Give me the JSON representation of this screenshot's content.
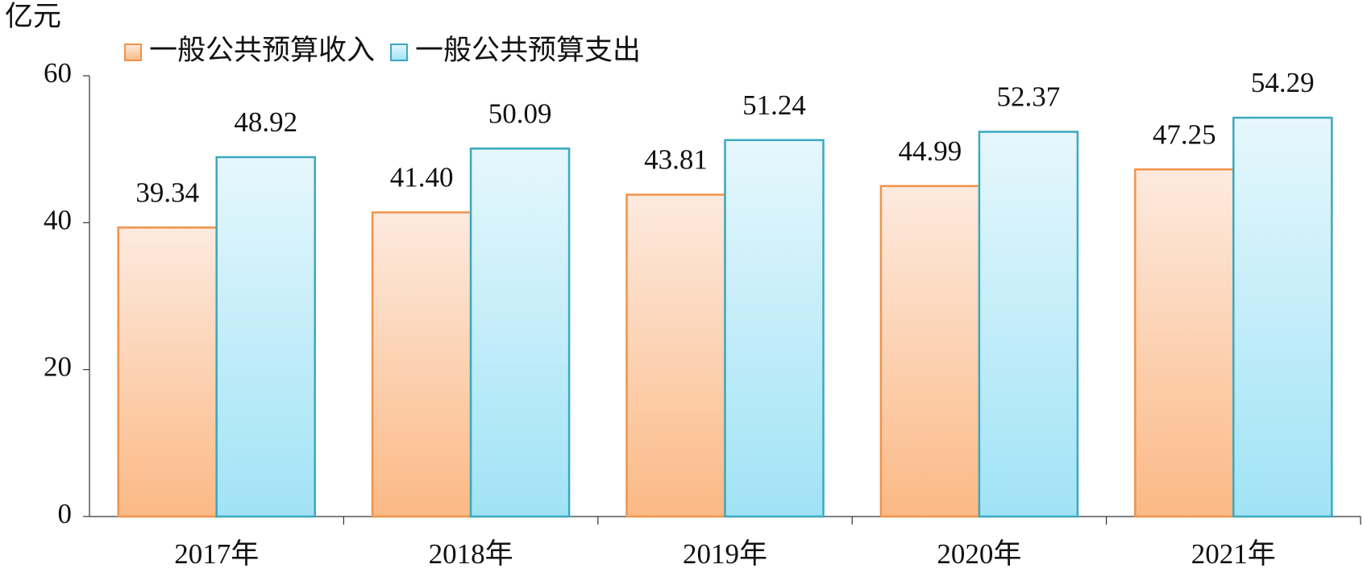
{
  "chart_data": {
    "type": "bar",
    "y_label": "亿元",
    "categories": [
      "2017年",
      "2018年",
      "2019年",
      "2020年",
      "2021年"
    ],
    "series": [
      {
        "name": "一般公共预算收入",
        "color": "#f0934a",
        "values": [
          39.34,
          41.4,
          43.81,
          44.99,
          47.25
        ],
        "value_labels": [
          "39.34",
          "41.40",
          "43.81",
          "44.99",
          "47.25"
        ]
      },
      {
        "name": "一般公共预算支出",
        "color": "#3aa9c0",
        "values": [
          48.92,
          50.09,
          51.24,
          52.37,
          54.29
        ],
        "value_labels": [
          "48.92",
          "50.09",
          "51.24",
          "52.37",
          "54.29"
        ]
      }
    ],
    "ylim": [
      0,
      60
    ],
    "yticks": [
      0,
      20,
      40,
      60
    ],
    "legend": "top-left"
  }
}
